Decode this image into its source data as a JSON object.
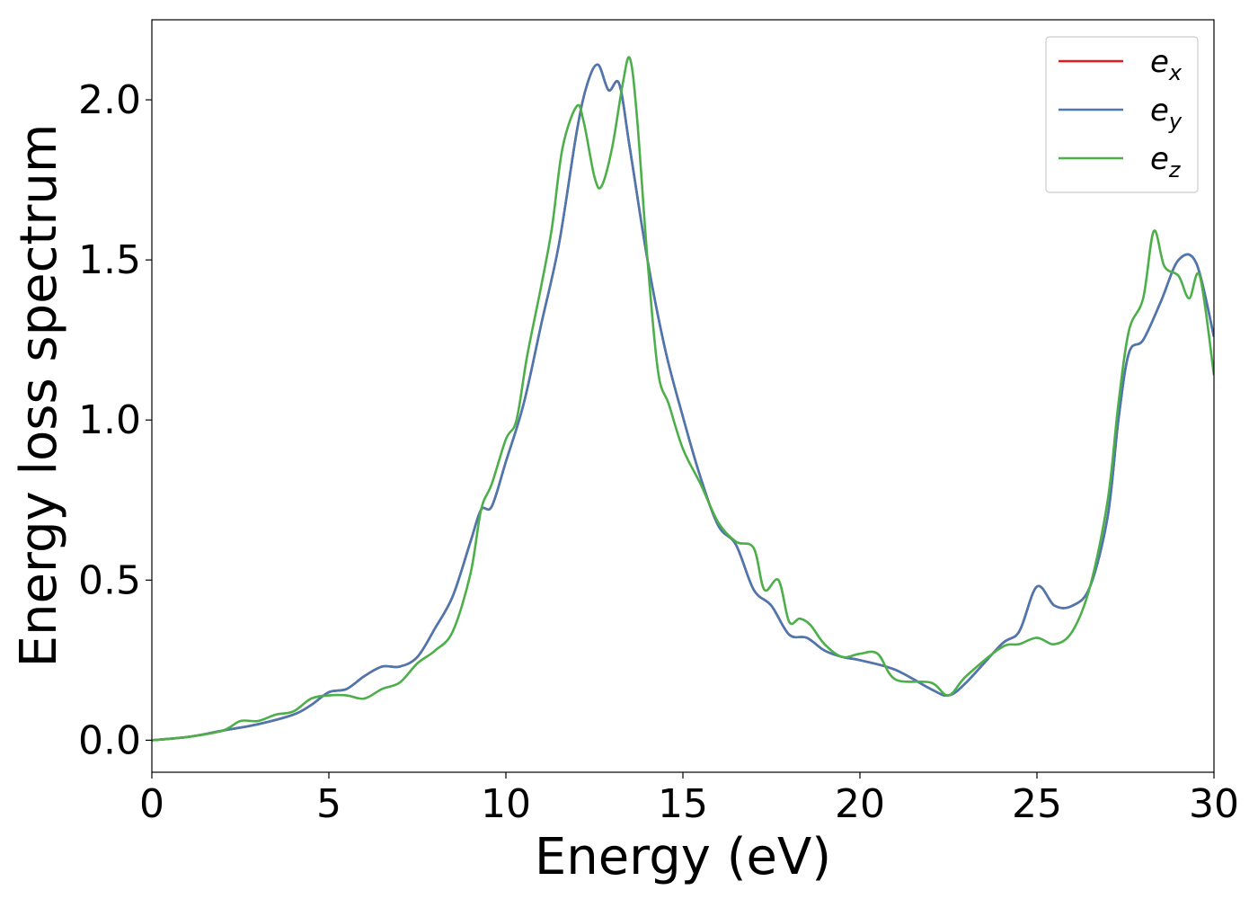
{
  "chart_data": {
    "type": "line",
    "title": "",
    "xlabel": "Energy (eV)",
    "ylabel": "Energy loss spectrum",
    "xlim": [
      0,
      30
    ],
    "ylim": [
      -0.1,
      2.25
    ],
    "xticks": [
      0,
      5,
      10,
      15,
      20,
      25,
      30
    ],
    "xtick_labels": [
      "0",
      "5",
      "10",
      "15",
      "20",
      "25",
      "30"
    ],
    "yticks": [
      0.0,
      0.5,
      1.0,
      1.5,
      2.0
    ],
    "ytick_labels": [
      "0.0",
      "0.5",
      "1.0",
      "1.5",
      "2.0"
    ],
    "grid": false,
    "legend_position": "top-right",
    "series": [
      {
        "name": "e",
        "subscript": "x",
        "color": "#e41a1c",
        "x": [
          0,
          1,
          2,
          3,
          4,
          4.5,
          5,
          5.5,
          6,
          6.5,
          7,
          7.5,
          8,
          8.5,
          9,
          9.3,
          9.6,
          10,
          10.5,
          11,
          11.5,
          12,
          12.3,
          12.6,
          12.9,
          13.2,
          13.5,
          14,
          14.5,
          15,
          15.5,
          16,
          16.5,
          17,
          17.5,
          18,
          18.5,
          19,
          19.5,
          20,
          21,
          22,
          22.5,
          23,
          24,
          24.5,
          25,
          25.5,
          26,
          26.5,
          27,
          27.3,
          27.6,
          28,
          28.5,
          29,
          29.5,
          30
        ],
        "values": [
          0.0,
          0.01,
          0.03,
          0.05,
          0.08,
          0.11,
          0.15,
          0.16,
          0.2,
          0.23,
          0.23,
          0.26,
          0.35,
          0.45,
          0.62,
          0.72,
          0.73,
          0.87,
          1.05,
          1.3,
          1.55,
          1.9,
          2.05,
          2.11,
          2.03,
          2.05,
          1.85,
          1.5,
          1.22,
          1.01,
          0.82,
          0.67,
          0.61,
          0.47,
          0.42,
          0.33,
          0.32,
          0.28,
          0.26,
          0.25,
          0.22,
          0.16,
          0.14,
          0.18,
          0.3,
          0.34,
          0.48,
          0.42,
          0.42,
          0.48,
          0.7,
          1.0,
          1.21,
          1.25,
          1.37,
          1.5,
          1.49,
          1.26
        ]
      },
      {
        "name": "e",
        "subscript": "y",
        "color": "#4a78b0",
        "x": [
          0,
          1,
          2,
          3,
          4,
          4.5,
          5,
          5.5,
          6,
          6.5,
          7,
          7.5,
          8,
          8.5,
          9,
          9.3,
          9.6,
          10,
          10.5,
          11,
          11.5,
          12,
          12.3,
          12.6,
          12.9,
          13.2,
          13.5,
          14,
          14.5,
          15,
          15.5,
          16,
          16.5,
          17,
          17.5,
          18,
          18.5,
          19,
          19.5,
          20,
          21,
          22,
          22.5,
          23,
          24,
          24.5,
          25,
          25.5,
          26,
          26.5,
          27,
          27.3,
          27.6,
          28,
          28.5,
          29,
          29.5,
          30
        ],
        "values": [
          0.0,
          0.01,
          0.03,
          0.05,
          0.08,
          0.11,
          0.15,
          0.16,
          0.2,
          0.23,
          0.23,
          0.26,
          0.35,
          0.45,
          0.62,
          0.72,
          0.73,
          0.87,
          1.05,
          1.3,
          1.55,
          1.9,
          2.05,
          2.11,
          2.03,
          2.05,
          1.85,
          1.5,
          1.22,
          1.01,
          0.82,
          0.67,
          0.61,
          0.47,
          0.42,
          0.33,
          0.32,
          0.28,
          0.26,
          0.25,
          0.22,
          0.16,
          0.14,
          0.18,
          0.3,
          0.34,
          0.48,
          0.42,
          0.42,
          0.48,
          0.7,
          1.0,
          1.21,
          1.25,
          1.37,
          1.5,
          1.49,
          1.26
        ]
      },
      {
        "name": "e",
        "subscript": "z",
        "color": "#4daf4a",
        "x": [
          0,
          1,
          2,
          2.5,
          3,
          3.5,
          4,
          4.5,
          5,
          5.5,
          6,
          6.5,
          7,
          7.5,
          8,
          8.5,
          9,
          9.3,
          9.6,
          10,
          10.3,
          10.6,
          11,
          11.3,
          11.6,
          12,
          12.2,
          12.5,
          12.7,
          13,
          13.3,
          13.5,
          13.7,
          14,
          14.3,
          14.6,
          15,
          15.5,
          16,
          16.5,
          17,
          17.3,
          17.7,
          18,
          18.3,
          18.6,
          19,
          19.5,
          20,
          20.5,
          21,
          22,
          22.5,
          23,
          24,
          24.5,
          25,
          25.5,
          26,
          26.5,
          27,
          27.3,
          27.6,
          28,
          28.3,
          28.6,
          29,
          29.3,
          29.6,
          30
        ],
        "values": [
          0.0,
          0.01,
          0.03,
          0.06,
          0.06,
          0.08,
          0.09,
          0.13,
          0.14,
          0.14,
          0.13,
          0.16,
          0.18,
          0.24,
          0.28,
          0.34,
          0.52,
          0.72,
          0.8,
          0.94,
          1.0,
          1.2,
          1.42,
          1.6,
          1.85,
          1.98,
          1.93,
          1.76,
          1.73,
          1.85,
          2.05,
          2.13,
          1.95,
          1.5,
          1.15,
          1.05,
          0.91,
          0.8,
          0.68,
          0.62,
          0.6,
          0.47,
          0.5,
          0.37,
          0.38,
          0.36,
          0.3,
          0.26,
          0.27,
          0.27,
          0.19,
          0.18,
          0.14,
          0.2,
          0.29,
          0.3,
          0.32,
          0.3,
          0.34,
          0.48,
          0.75,
          1.05,
          1.28,
          1.38,
          1.59,
          1.48,
          1.45,
          1.38,
          1.45,
          1.14
        ]
      }
    ]
  }
}
